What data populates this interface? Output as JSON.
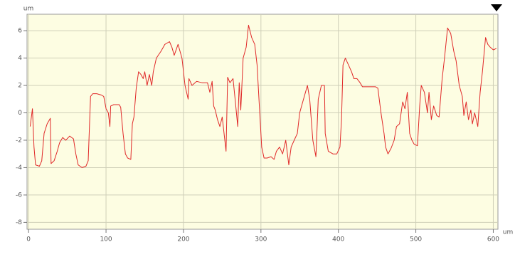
{
  "chart_data": {
    "type": "line",
    "y_label": "um",
    "x_label": "um",
    "xlim": [
      -2,
      606
    ],
    "ylim": [
      -8.5,
      7.2
    ],
    "xticks": [
      0,
      100,
      200,
      300,
      400,
      500,
      600
    ],
    "yticks": [
      -8,
      -6,
      -4,
      -2,
      0,
      2,
      4,
      6
    ],
    "grid": true,
    "series": [
      {
        "color": "#e02828",
        "x": [
          2,
          5,
          7,
          9,
          14,
          17,
          20,
          24,
          28,
          29,
          33,
          37,
          40,
          44,
          48,
          53,
          58,
          61,
          64,
          69,
          74,
          77,
          80,
          83,
          88,
          94,
          97,
          100,
          103,
          105,
          106,
          110,
          117,
          119,
          122,
          125,
          128,
          132,
          134,
          136,
          139,
          142,
          145,
          148,
          150,
          153,
          156,
          159,
          161,
          165,
          171,
          176,
          182,
          185,
          188,
          193,
          198,
          202,
          206,
          207,
          211,
          217,
          224,
          231,
          234,
          237,
          239,
          241,
          244,
          247,
          250,
          255,
          257,
          260,
          264,
          267,
          270,
          272,
          274,
          277,
          281,
          284,
          288,
          292,
          295,
          298,
          301,
          304,
          308,
          313,
          317,
          320,
          324,
          328,
          332,
          336,
          339,
          343,
          347,
          350,
          355,
          360,
          363,
          367,
          371,
          374,
          378,
          382,
          383,
          387,
          393,
          398,
          402,
          404,
          406,
          409,
          413,
          417,
          420,
          424,
          428,
          431,
          439,
          448,
          451,
          455,
          459,
          461,
          464,
          468,
          472,
          475,
          479,
          483,
          486,
          489,
          492,
          495,
          498,
          502,
          505,
          507,
          511,
          515,
          517,
          520,
          523,
          527,
          530,
          534,
          537,
          541,
          545,
          549,
          552,
          556,
          560,
          562,
          565,
          568,
          571,
          573,
          576,
          580,
          583,
          586,
          590,
          593,
          596,
          600,
          604
        ],
        "values": [
          -1.0,
          0.3,
          -2.5,
          -3.8,
          -3.9,
          -3.5,
          -1.5,
          -0.8,
          -0.4,
          -3.7,
          -3.5,
          -2.8,
          -2.2,
          -1.8,
          -2.0,
          -1.7,
          -1.9,
          -3.0,
          -3.8,
          -4.0,
          -3.9,
          -3.5,
          1.2,
          1.4,
          1.4,
          1.3,
          1.2,
          0.3,
          0.0,
          -1.0,
          0.5,
          0.6,
          0.6,
          0.4,
          -1.5,
          -3.0,
          -3.3,
          -3.4,
          -0.8,
          -0.3,
          1.8,
          3.0,
          2.8,
          2.5,
          3.0,
          2.0,
          2.8,
          2.0,
          3.0,
          4.0,
          4.5,
          5.0,
          5.2,
          4.8,
          4.2,
          5.0,
          4.0,
          2.0,
          1.0,
          2.5,
          2.0,
          2.3,
          2.2,
          2.2,
          1.5,
          2.3,
          0.5,
          0.2,
          -0.5,
          -1.0,
          -0.3,
          -2.8,
          2.6,
          2.2,
          2.5,
          0.8,
          -1.0,
          2.2,
          0.2,
          4.0,
          4.8,
          6.4,
          5.5,
          5.0,
          3.5,
          0.5,
          -2.5,
          -3.3,
          -3.3,
          -3.2,
          -3.4,
          -2.8,
          -2.5,
          -3.0,
          -2.0,
          -3.8,
          -2.5,
          -2.0,
          -1.5,
          0.0,
          1.0,
          2.0,
          1.0,
          -2.0,
          -3.2,
          1.0,
          2.0,
          2.0,
          -1.5,
          -2.8,
          -3.0,
          -3.0,
          -2.5,
          -0.5,
          3.5,
          4.0,
          3.5,
          3.0,
          2.5,
          2.5,
          2.2,
          1.9,
          1.9,
          1.9,
          1.8,
          0.0,
          -1.5,
          -2.5,
          -3.0,
          -2.6,
          -2.0,
          -1.0,
          -0.8,
          0.8,
          0.3,
          1.5,
          -1.5,
          -2.0,
          -2.3,
          -2.4,
          0.5,
          2.0,
          1.5,
          0.0,
          1.5,
          -0.5,
          0.5,
          -0.2,
          -0.3,
          2.5,
          4.0,
          6.2,
          5.8,
          4.5,
          3.8,
          2.0,
          1.2,
          -0.2,
          0.8,
          -0.5,
          0.2,
          -0.8,
          0.0,
          -1.0,
          1.5,
          3.0,
          5.5,
          5.0,
          4.8,
          4.6,
          4.7
        ]
      }
    ]
  }
}
